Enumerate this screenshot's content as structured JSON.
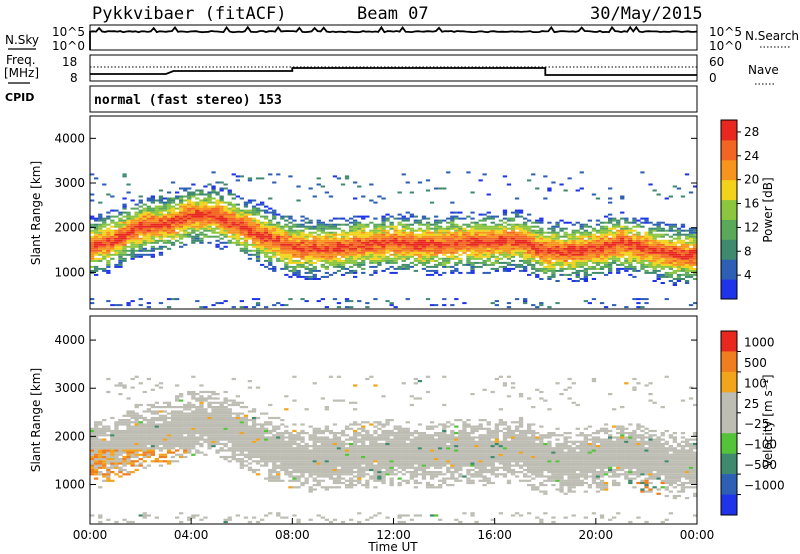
{
  "header": {
    "station": "Pykkvibaer (fitACF)",
    "beam": "Beam 07",
    "date": "30/May/2015"
  },
  "noise_panel": {
    "left_label": "N.Sky",
    "right_label": "N.Search",
    "left_ticks": [
      "10^5",
      "10^0"
    ],
    "right_ticks": [
      "10^5",
      "10^0"
    ]
  },
  "freq_panel": {
    "left_label_1": "Freq.",
    "left_label_2": "[MHz]",
    "left_ticks": [
      "18",
      "8"
    ],
    "right_label": "Nave",
    "right_ticks": [
      "60",
      "0"
    ]
  },
  "cpid": {
    "label": "CPID",
    "text": "normal (fast stereo) 153"
  },
  "chart_data": [
    {
      "type": "heatmap",
      "title": "Power",
      "ylabel": "Slant Range [km]",
      "xlabel": "",
      "x_ticks": [
        "00:00",
        "04:00",
        "08:00",
        "12:00",
        "16:00",
        "20:00",
        "00:00"
      ],
      "xlim_hours": [
        0,
        24
      ],
      "y_ticks": [
        1000,
        2000,
        3000,
        4000
      ],
      "ylim_km": [
        180,
        4500
      ],
      "colorbar": {
        "label": "Power [dB]",
        "ticks": [
          "4",
          "8",
          "12",
          "16",
          "20",
          "24",
          "28"
        ],
        "range": [
          0,
          30
        ]
      },
      "band_center_km": [
        {
          "t": 0.0,
          "km": 1550
        },
        {
          "t": 1.0,
          "km": 1700
        },
        {
          "t": 2.0,
          "km": 2000
        },
        {
          "t": 3.0,
          "km": 2050
        },
        {
          "t": 4.0,
          "km": 2250
        },
        {
          "t": 5.0,
          "km": 2250
        },
        {
          "t": 6.0,
          "km": 2000
        },
        {
          "t": 7.0,
          "km": 1750
        },
        {
          "t": 8.0,
          "km": 1550
        },
        {
          "t": 9.0,
          "km": 1500
        },
        {
          "t": 10.0,
          "km": 1550
        },
        {
          "t": 11.0,
          "km": 1600
        },
        {
          "t": 12.0,
          "km": 1650
        },
        {
          "t": 13.0,
          "km": 1600
        },
        {
          "t": 14.0,
          "km": 1600
        },
        {
          "t": 15.0,
          "km": 1650
        },
        {
          "t": 16.0,
          "km": 1650
        },
        {
          "t": 17.0,
          "km": 1700
        },
        {
          "t": 18.0,
          "km": 1450
        },
        {
          "t": 19.0,
          "km": 1450
        },
        {
          "t": 20.0,
          "km": 1500
        },
        {
          "t": 21.0,
          "km": 1650
        },
        {
          "t": 22.0,
          "km": 1500
        },
        {
          "t": 23.0,
          "km": 1400
        },
        {
          "t": 24.0,
          "km": 1350
        }
      ]
    },
    {
      "type": "heatmap",
      "title": "Velocity",
      "ylabel": "Slant Range [km]",
      "xlabel": "Time UT",
      "x_ticks": [
        "00:00",
        "04:00",
        "08:00",
        "12:00",
        "16:00",
        "20:00",
        "00:00"
      ],
      "xlim_hours": [
        0,
        24
      ],
      "y_ticks": [
        1000,
        2000,
        3000,
        4000
      ],
      "ylim_km": [
        180,
        4500
      ],
      "colorbar": {
        "label": "Velocity [m s⁻¹]",
        "ticks": [
          "1000",
          "500",
          "100",
          "25",
          "−25",
          "−100",
          "−500",
          "−1000"
        ]
      }
    }
  ],
  "colors": {
    "power_scale": [
      "#1f34e8",
      "#2d5fb5",
      "#3f8a6e",
      "#5aa85a",
      "#8cc63f",
      "#f2d21b",
      "#f7941d",
      "#f26522",
      "#e8281f"
    ],
    "velocity_scale": [
      "#1f34e8",
      "#2d5fb5",
      "#3f8a6e",
      "#53c43a",
      "#bdbdb4",
      "#bdbdb4",
      "#f2a41b",
      "#f07e1f",
      "#e8281f"
    ]
  }
}
